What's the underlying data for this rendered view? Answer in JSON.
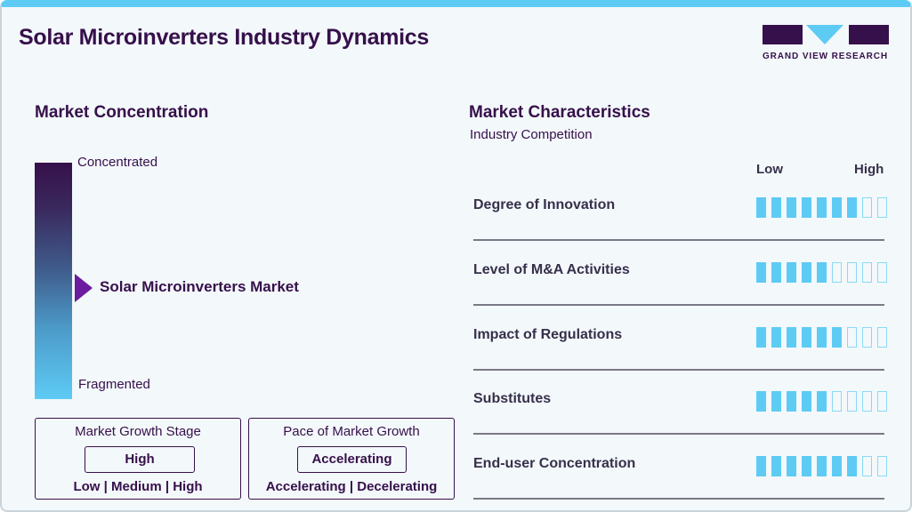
{
  "header": {
    "title": "Solar Microinverters Industry Dynamics",
    "logo_text": "GRAND VIEW RESEARCH",
    "accent_color": "#5ecbf5",
    "brand_color": "#36104a"
  },
  "market_concentration": {
    "heading": "Market Concentration",
    "top_label": "Concentrated",
    "bottom_label": "Fragmented",
    "marker_label": "Solar Microinverters Market",
    "marker_color": "#6b1e9e"
  },
  "growth_stage": {
    "heading": "Market Growth Stage",
    "value": "High",
    "options": "Low  |  Medium  |  High"
  },
  "growth_pace": {
    "heading": "Pace of Market Growth",
    "value": "Accelerating",
    "options": "Accelerating  |  Decelerating"
  },
  "market_characteristics": {
    "heading": "Market Characteristics",
    "subheading": "Industry Competition",
    "scale_low": "Low",
    "scale_high": "High",
    "max_segments": 9,
    "items": [
      {
        "label": "Degree of Innovation",
        "rating": 7
      },
      {
        "label": "Level of M&A Activities",
        "rating": 5
      },
      {
        "label": "Impact of Regulations",
        "rating": 6
      },
      {
        "label": "Substitutes",
        "rating": 5
      },
      {
        "label": "End-user Concentration",
        "rating": 7
      }
    ]
  },
  "chart_data": {
    "type": "table",
    "title": "Solar Microinverters Industry Dynamics",
    "market_concentration": "moderate (midpoint between Concentrated and Fragmented)",
    "market_growth_stage": "High",
    "pace_of_market_growth": "Accelerating",
    "scale": [
      0,
      9
    ],
    "categories": [
      "Degree of Innovation",
      "Level of M&A Activities",
      "Impact of Regulations",
      "Substitutes",
      "End-user Concentration"
    ],
    "values": [
      7,
      5,
      6,
      5,
      7
    ]
  }
}
